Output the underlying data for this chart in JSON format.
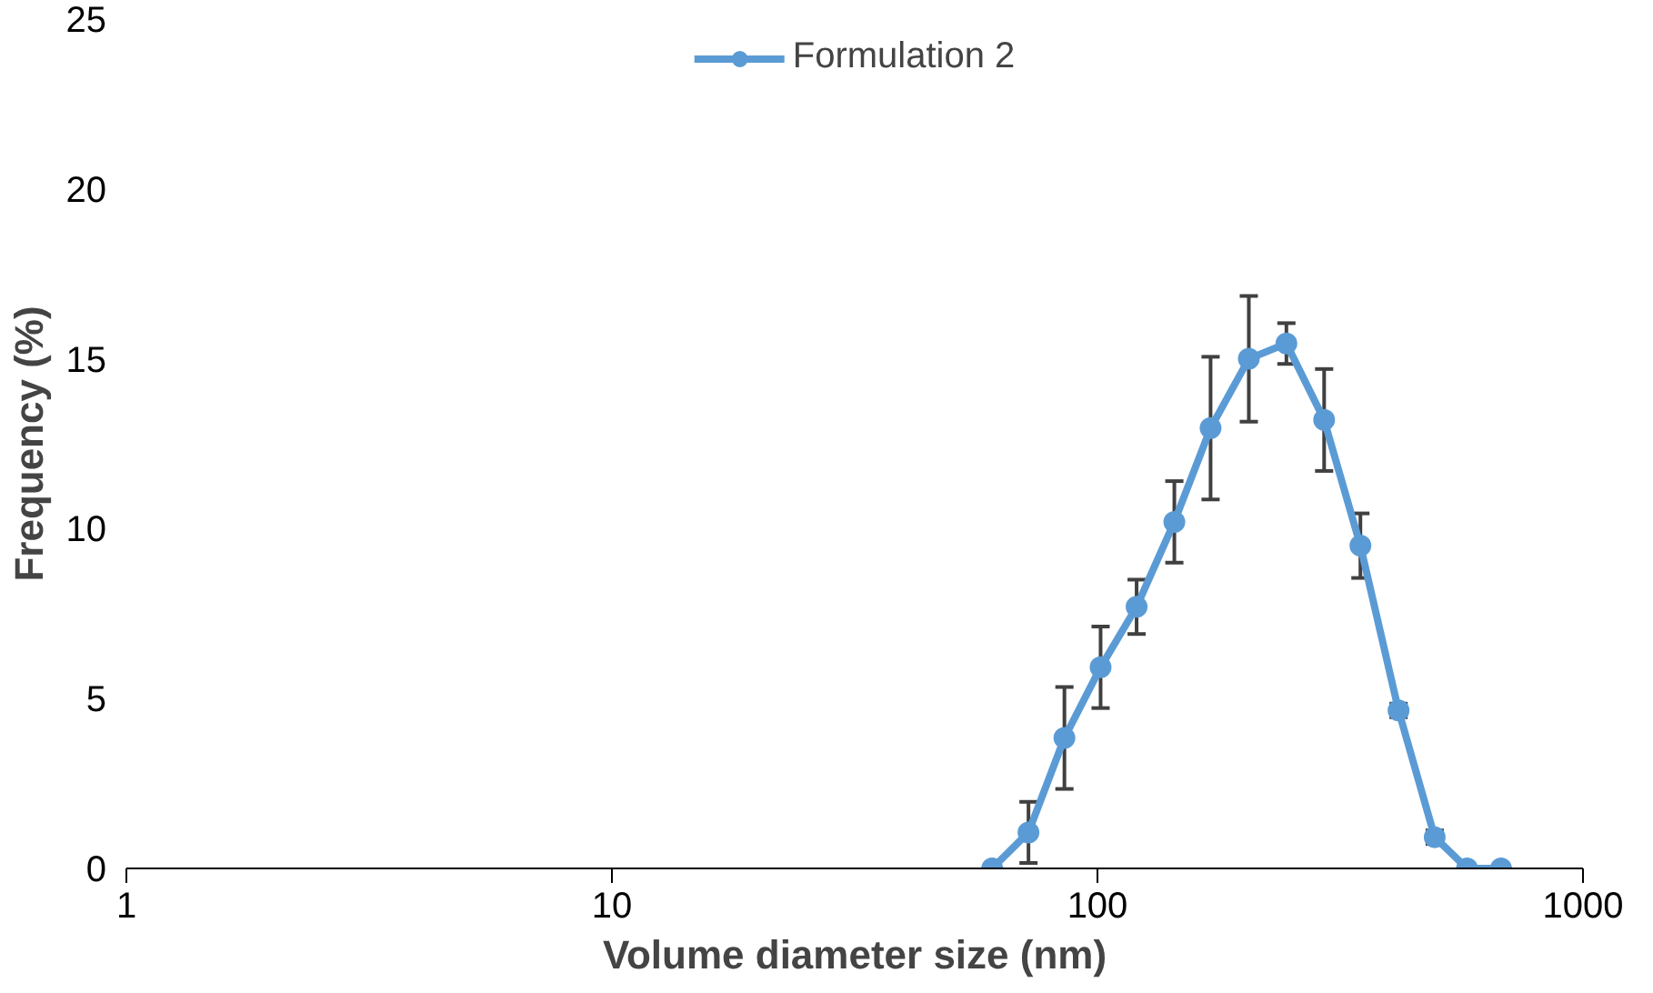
{
  "chart_data": {
    "type": "line",
    "xlabel": "Volume diameter size (nm)",
    "ylabel": "Frequency (%)",
    "log": "x",
    "xlim": [
      1,
      1000
    ],
    "xticks": [
      1,
      10,
      100,
      1000
    ],
    "ylim": [
      0,
      25
    ],
    "yticks": [
      0,
      5,
      10,
      15,
      20,
      25
    ],
    "grid": false,
    "legend": "top",
    "marker": "circle",
    "line_style": "solid",
    "series": [
      {
        "name": "Formulation 2",
        "color": "#5b9bd5",
        "x": [
          60.7,
          72.1,
          85.5,
          101.5,
          120.4,
          144,
          171,
          205,
          245,
          293,
          348,
          417,
          495,
          577,
          678
        ],
        "values": [
          0,
          1.06,
          3.84,
          5.92,
          7.7,
          10.2,
          12.96,
          15.0,
          15.45,
          13.2,
          9.5,
          4.65,
          0.92,
          0,
          0
        ],
        "errors": [
          null,
          0.9,
          1.5,
          1.2,
          0.8,
          1.2,
          2.1,
          1.85,
          0.6,
          1.5,
          0.95,
          0.2,
          0.2,
          null,
          null
        ]
      }
    ]
  }
}
